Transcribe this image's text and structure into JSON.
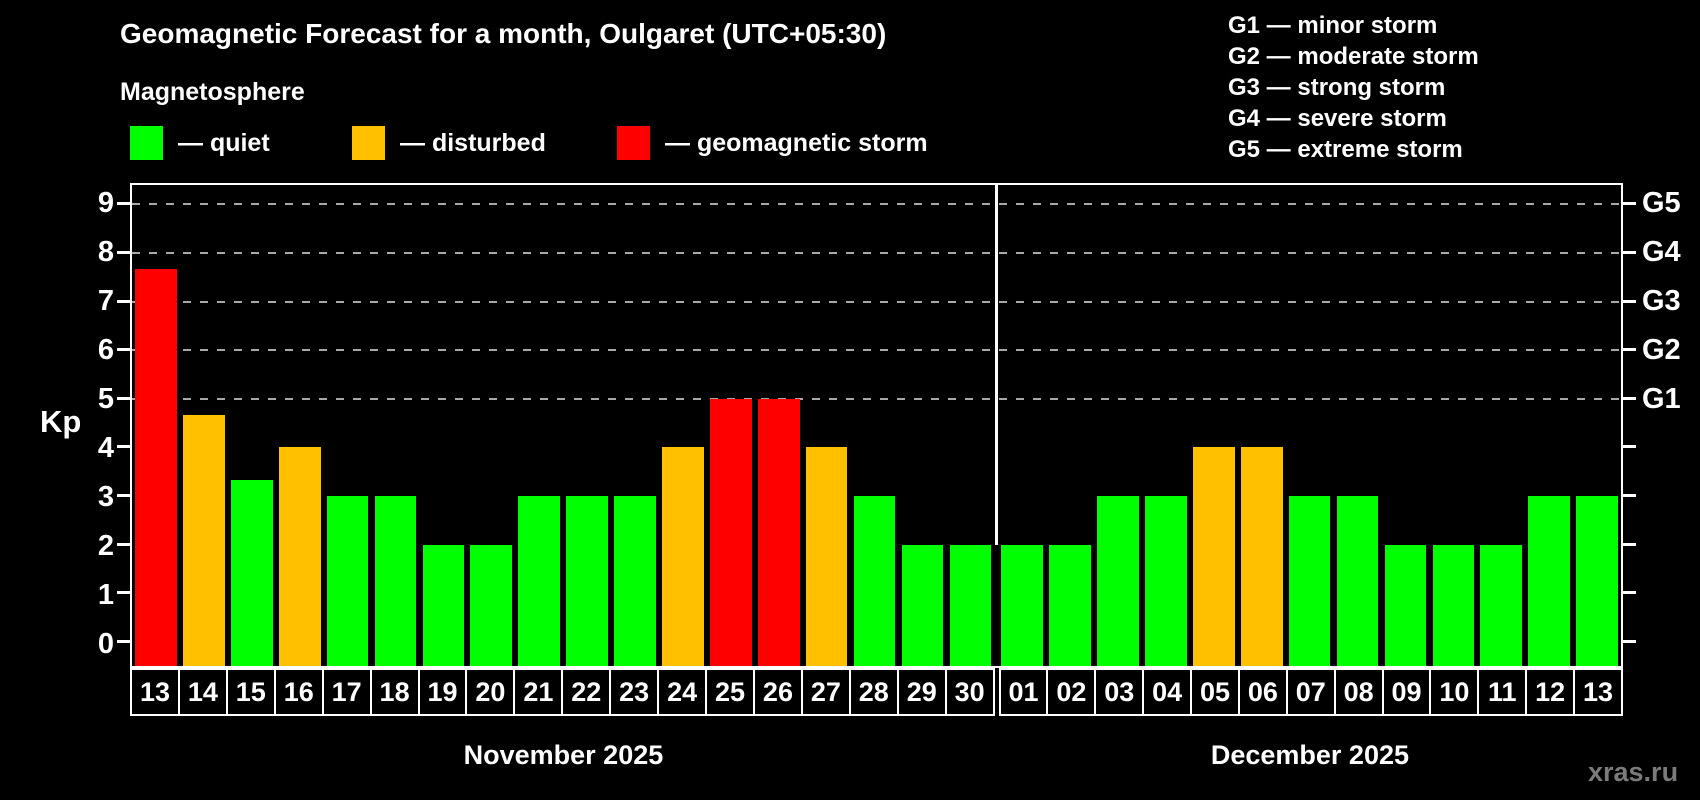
{
  "title": "Geomagnetic Forecast for a month, Oulgaret (UTC+05:30)",
  "subtitle": "Magnetosphere",
  "legend": [
    {
      "id": "quiet",
      "label": "— quiet",
      "swatch": "#00ff00"
    },
    {
      "id": "disturbed",
      "label": "— disturbed",
      "swatch": "#ffc000"
    },
    {
      "id": "storm",
      "label": "— geomagnetic storm",
      "swatch": "#ff0000"
    }
  ],
  "g_legend": [
    {
      "label": "G1 — minor storm"
    },
    {
      "label": "G2 — moderate storm"
    },
    {
      "label": "G3 — strong storm"
    },
    {
      "label": "G4 — severe storm"
    },
    {
      "label": "G5 — extreme storm"
    }
  ],
  "axis": {
    "kp_label": "Kp",
    "left_ticks": [
      0,
      1,
      2,
      3,
      4,
      5,
      6,
      7,
      8,
      9
    ],
    "right_labels": [
      {
        "kp": 5,
        "label": "G1"
      },
      {
        "kp": 6,
        "label": "G2"
      },
      {
        "kp": 7,
        "label": "G3"
      },
      {
        "kp": 8,
        "label": "G4"
      },
      {
        "kp": 9,
        "label": "G5"
      }
    ],
    "gridlines_kp": [
      5,
      6,
      7,
      8,
      9
    ]
  },
  "colors": {
    "quiet": "#00ff00",
    "disturbed": "#ffc000",
    "storm": "#ff0000",
    "background": "#000000",
    "axis": "#ffffff",
    "grid": "#a8a8a8",
    "watermark": "#7b7b7b"
  },
  "watermark": "xras.ru",
  "chart_data": {
    "type": "bar",
    "title": "Geomagnetic Forecast for a month, Oulgaret (UTC+05:30)",
    "ylabel": "Kp",
    "ylim": [
      -0.5,
      9.4
    ],
    "grid": "dashed horizontal lines at Kp 5-9 (G1-G5 levels)",
    "legend_position": "top",
    "month_separator_from_kp": 2,
    "months": [
      {
        "label": "November 2025",
        "bars": [
          {
            "day": "13",
            "kp": 7.67,
            "status": "storm"
          },
          {
            "day": "14",
            "kp": 4.67,
            "status": "disturbed"
          },
          {
            "day": "15",
            "kp": 3.33,
            "status": "quiet"
          },
          {
            "day": "16",
            "kp": 4,
            "status": "disturbed"
          },
          {
            "day": "17",
            "kp": 3,
            "status": "quiet"
          },
          {
            "day": "18",
            "kp": 3,
            "status": "quiet"
          },
          {
            "day": "19",
            "kp": 2,
            "status": "quiet"
          },
          {
            "day": "20",
            "kp": 2,
            "status": "quiet"
          },
          {
            "day": "21",
            "kp": 3,
            "status": "quiet"
          },
          {
            "day": "22",
            "kp": 3,
            "status": "quiet"
          },
          {
            "day": "23",
            "kp": 3,
            "status": "quiet"
          },
          {
            "day": "24",
            "kp": 4,
            "status": "disturbed"
          },
          {
            "day": "25",
            "kp": 5,
            "status": "storm"
          },
          {
            "day": "26",
            "kp": 5,
            "status": "storm"
          },
          {
            "day": "27",
            "kp": 4,
            "status": "disturbed"
          },
          {
            "day": "28",
            "kp": 3,
            "status": "quiet"
          },
          {
            "day": "29",
            "kp": 2,
            "status": "quiet"
          },
          {
            "day": "30",
            "kp": 2,
            "status": "quiet"
          }
        ]
      },
      {
        "label": "December 2025",
        "bars": [
          {
            "day": "01",
            "kp": 2,
            "status": "quiet"
          },
          {
            "day": "02",
            "kp": 2,
            "status": "quiet"
          },
          {
            "day": "03",
            "kp": 3,
            "status": "quiet"
          },
          {
            "day": "04",
            "kp": 3,
            "status": "quiet"
          },
          {
            "day": "05",
            "kp": 4,
            "status": "disturbed"
          },
          {
            "day": "06",
            "kp": 4,
            "status": "disturbed"
          },
          {
            "day": "07",
            "kp": 3,
            "status": "quiet"
          },
          {
            "day": "08",
            "kp": 3,
            "status": "quiet"
          },
          {
            "day": "09",
            "kp": 2,
            "status": "quiet"
          },
          {
            "day": "10",
            "kp": 2,
            "status": "quiet"
          },
          {
            "day": "11",
            "kp": 2,
            "status": "quiet"
          },
          {
            "day": "12",
            "kp": 3,
            "status": "quiet"
          },
          {
            "day": "13",
            "kp": 3,
            "status": "quiet"
          }
        ]
      }
    ]
  }
}
